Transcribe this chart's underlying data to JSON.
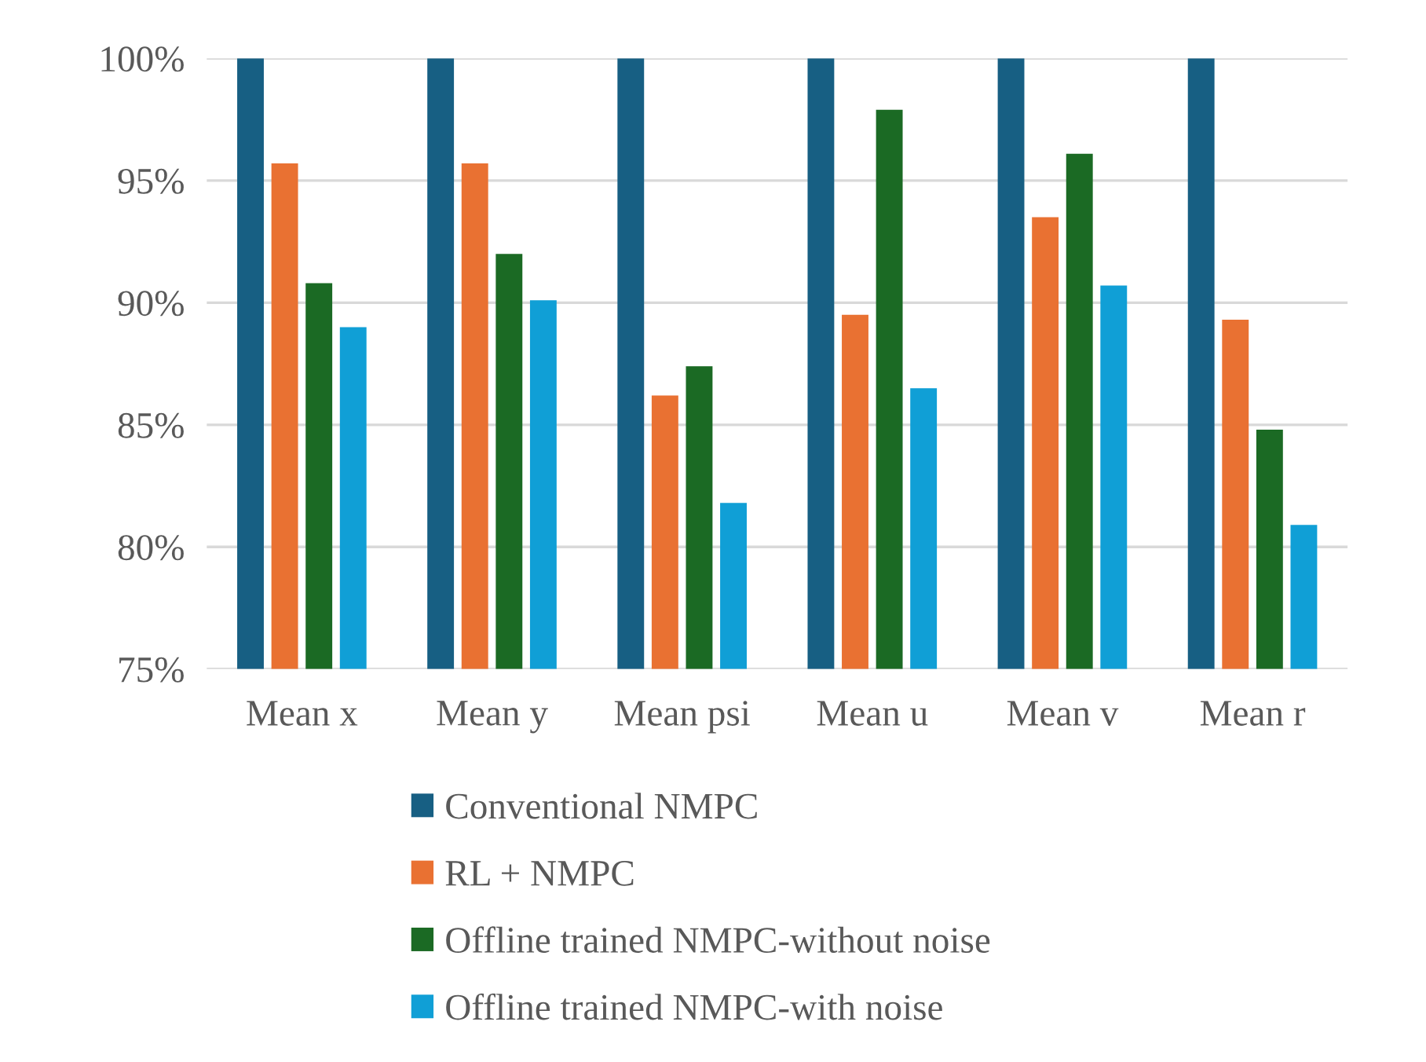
{
  "chart_data": {
    "type": "bar",
    "categories": [
      "Mean x",
      "Mean y",
      "Mean psi",
      "Mean u",
      "Mean v",
      "Mean r"
    ],
    "series": [
      {
        "name": "Conventional NMPC",
        "color": "#175f83",
        "values": [
          100,
          100,
          100,
          100,
          100,
          100
        ]
      },
      {
        "name": "RL + NMPC",
        "color": "#e97132",
        "values": [
          95.7,
          95.7,
          86.2,
          89.5,
          93.5,
          89.3
        ]
      },
      {
        "name": "Offline trained NMPC-without noise",
        "color": "#1b6a24",
        "values": [
          90.8,
          92.0,
          87.4,
          97.9,
          96.1,
          84.8
        ]
      },
      {
        "name": "Offline trained NMPC-with noise",
        "color": "#109fd6",
        "values": [
          89.0,
          90.1,
          81.8,
          86.5,
          90.7,
          80.9
        ]
      }
    ],
    "ylim": [
      75,
      100
    ],
    "yticks": [
      {
        "value": 75,
        "label": "75%"
      },
      {
        "value": 80,
        "label": "80%"
      },
      {
        "value": 85,
        "label": "85%"
      },
      {
        "value": 90,
        "label": "90%"
      },
      {
        "value": 95,
        "label": "95%"
      },
      {
        "value": 100,
        "label": "100%"
      }
    ],
    "grid": "y",
    "legend": "bottom"
  }
}
